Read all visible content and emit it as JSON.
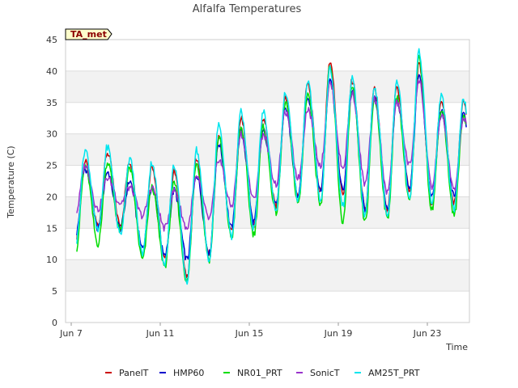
{
  "chart_data": {
    "type": "line",
    "title": "Alfalfa Temperatures",
    "xlabel": "Time",
    "ylabel": "Temperature (C)",
    "tag": "TA_met",
    "ylim": [
      0,
      45
    ],
    "xlim": [
      "2024-06-07",
      "2024-06-25"
    ],
    "x_ticks": [
      {
        "label": "Jun 7",
        "date": "2024-06-07"
      },
      {
        "label": "Jun 11",
        "date": "2024-06-11"
      },
      {
        "label": "Jun 15",
        "date": "2024-06-15"
      },
      {
        "label": "Jun 19",
        "date": "2024-06-19"
      },
      {
        "label": "Jun 23",
        "date": "2024-06-23"
      }
    ],
    "y_ticks": [
      0,
      5,
      10,
      15,
      20,
      25,
      30,
      35,
      40,
      45
    ],
    "grid": true,
    "legend_position": "bottom",
    "daily": {
      "dates": [
        "2024-06-07",
        "2024-06-08",
        "2024-06-09",
        "2024-06-10",
        "2024-06-11",
        "2024-06-12",
        "2024-06-13",
        "2024-06-14",
        "2024-06-15",
        "2024-06-16",
        "2024-06-17",
        "2024-06-18",
        "2024-06-19",
        "2024-06-20",
        "2024-06-21",
        "2024-06-22",
        "2024-06-23",
        "2024-06-24"
      ],
      "peak_hour": 15,
      "min_hour": 5
    },
    "series": [
      {
        "name": "PanelT",
        "color": "#cc0000",
        "daily_max": [
          25.5,
          27.0,
          25.5,
          25.0,
          24.0,
          26.0,
          29.5,
          32.5,
          32.5,
          36.0,
          38.0,
          41.5,
          38.5,
          37.0,
          37.5,
          41.0,
          35.5,
          35.0
        ],
        "daily_min": [
          13.5,
          15.5,
          15.5,
          11.0,
          10.0,
          7.0,
          10.5,
          14.5,
          15.5,
          18.5,
          20.0,
          20.5,
          20.5,
          18.0,
          17.5,
          21.0,
          19.0,
          19.0
        ]
      },
      {
        "name": "HMP60",
        "color": "#0000cc",
        "daily_max": [
          24.5,
          24.0,
          22.5,
          21.5,
          21.0,
          23.5,
          28.5,
          30.5,
          30.5,
          34.0,
          36.0,
          39.0,
          37.0,
          36.0,
          35.5,
          39.0,
          33.5,
          33.0
        ],
        "daily_min": [
          14.0,
          15.0,
          15.0,
          12.0,
          10.5,
          10.0,
          11.0,
          15.0,
          16.0,
          19.0,
          20.0,
          21.0,
          21.0,
          18.0,
          18.0,
          21.5,
          20.0,
          20.0
        ]
      },
      {
        "name": "NR01_PRT",
        "color": "#00dd00",
        "daily_max": [
          25.0,
          25.5,
          24.5,
          21.5,
          22.0,
          25.5,
          29.5,
          31.0,
          31.0,
          35.0,
          36.5,
          40.5,
          37.5,
          35.5,
          36.0,
          42.0,
          34.0,
          33.0
        ],
        "daily_min": [
          11.5,
          12.5,
          14.5,
          10.0,
          9.0,
          6.5,
          10.0,
          13.5,
          14.0,
          17.5,
          19.0,
          19.0,
          16.0,
          16.0,
          16.5,
          19.5,
          18.0,
          17.0
        ]
      },
      {
        "name": "SonicT",
        "color": "#9933cc",
        "daily_max": [
          25.0,
          23.0,
          21.5,
          21.5,
          21.0,
          23.0,
          26.0,
          30.0,
          30.0,
          33.5,
          34.0,
          38.0,
          36.5,
          35.5,
          35.0,
          38.5,
          33.0,
          32.5
        ],
        "daily_min": [
          17.5,
          18.0,
          19.0,
          17.0,
          15.0,
          15.0,
          16.5,
          18.5,
          19.5,
          22.0,
          23.0,
          25.0,
          24.5,
          22.0,
          20.5,
          25.0,
          21.5,
          21.0
        ]
      },
      {
        "name": "AM25T_PRT",
        "color": "#00e5ee",
        "daily_max": [
          27.5,
          28.0,
          26.0,
          25.5,
          25.0,
          27.5,
          31.5,
          33.5,
          33.5,
          36.5,
          38.5,
          40.5,
          39.0,
          37.5,
          38.5,
          43.0,
          36.0,
          35.5
        ],
        "daily_min": [
          12.5,
          14.5,
          14.0,
          11.0,
          9.5,
          6.5,
          10.0,
          13.5,
          15.0,
          18.0,
          19.5,
          19.5,
          18.5,
          17.0,
          17.0,
          20.0,
          19.0,
          18.0
        ]
      }
    ]
  }
}
